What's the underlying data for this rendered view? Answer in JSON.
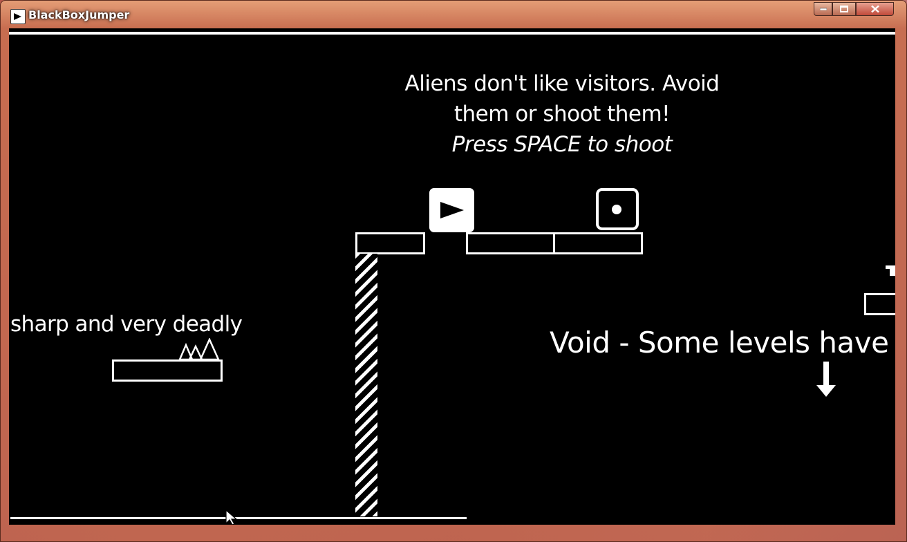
{
  "window": {
    "title": "BlackBoxJumper",
    "controls": [
      "minimize",
      "maximize",
      "close"
    ]
  },
  "game": {
    "hint_alien": {
      "line1": "Aliens don't like visitors. Avoid",
      "line2": "them or shoot them!",
      "line3": "Press SPACE to shoot"
    },
    "hint_spikes": "sharp and very deadly",
    "hint_void": "Void - Some levels have r",
    "entities": {
      "player_icon": "play-triangle-icon",
      "alien_icon": "dot-icon",
      "void_arrow_icon": "arrow-down-icon"
    },
    "colors": {
      "background": "#000000",
      "foreground": "#ffffff"
    }
  }
}
